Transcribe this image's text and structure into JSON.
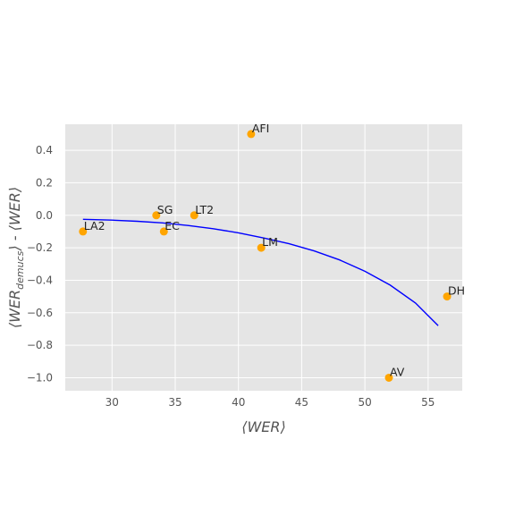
{
  "chart_data": {
    "type": "scatter",
    "title": "",
    "xlabel": "⟨WER⟩",
    "ylabel": {
      "open": "⟨WER",
      "sub": "demucs",
      "close": "⟩ - ⟨WER⟩"
    },
    "xlim": [
      26.3,
      57.7
    ],
    "ylim": [
      -1.08,
      0.56
    ],
    "x_ticks": [
      30,
      35,
      40,
      45,
      50,
      55
    ],
    "y_ticks": [
      -1.0,
      -0.8,
      -0.6,
      -0.4,
      -0.2,
      0.0,
      0.2,
      0.4
    ],
    "x_tick_labels": [
      "30",
      "35",
      "40",
      "45",
      "50",
      "55"
    ],
    "y_tick_labels": [
      "−1.0",
      "−0.8",
      "−0.6",
      "−0.4",
      "−0.2",
      "0.0",
      "0.2",
      "0.4"
    ],
    "grid": true,
    "background": "#e5e5e5",
    "points": [
      {
        "label": "AFI",
        "x": 41.0,
        "y": 0.5
      },
      {
        "label": "SG",
        "x": 33.5,
        "y": 0.0
      },
      {
        "label": "LT2",
        "x": 36.5,
        "y": 0.0
      },
      {
        "label": "LA2",
        "x": 27.7,
        "y": -0.1
      },
      {
        "label": "EC",
        "x": 34.1,
        "y": -0.1
      },
      {
        "label": "LM",
        "x": 41.8,
        "y": -0.2
      },
      {
        "label": "DH",
        "x": 56.5,
        "y": -0.5
      },
      {
        "label": "AV",
        "x": 51.9,
        "y": -1.0
      }
    ],
    "point_color": "#ffa500",
    "fit_line": {
      "color": "#0000ff",
      "x": [
        27.7,
        30.0,
        32.0,
        34.0,
        36.0,
        38.0,
        40.0,
        42.0,
        44.0,
        46.0,
        48.0,
        50.0,
        52.0,
        54.0,
        55.8
      ],
      "y": [
        -0.025,
        -0.03,
        -0.037,
        -0.047,
        -0.063,
        -0.083,
        -0.108,
        -0.14,
        -0.175,
        -0.22,
        -0.275,
        -0.345,
        -0.43,
        -0.54,
        -0.68
      ]
    }
  }
}
